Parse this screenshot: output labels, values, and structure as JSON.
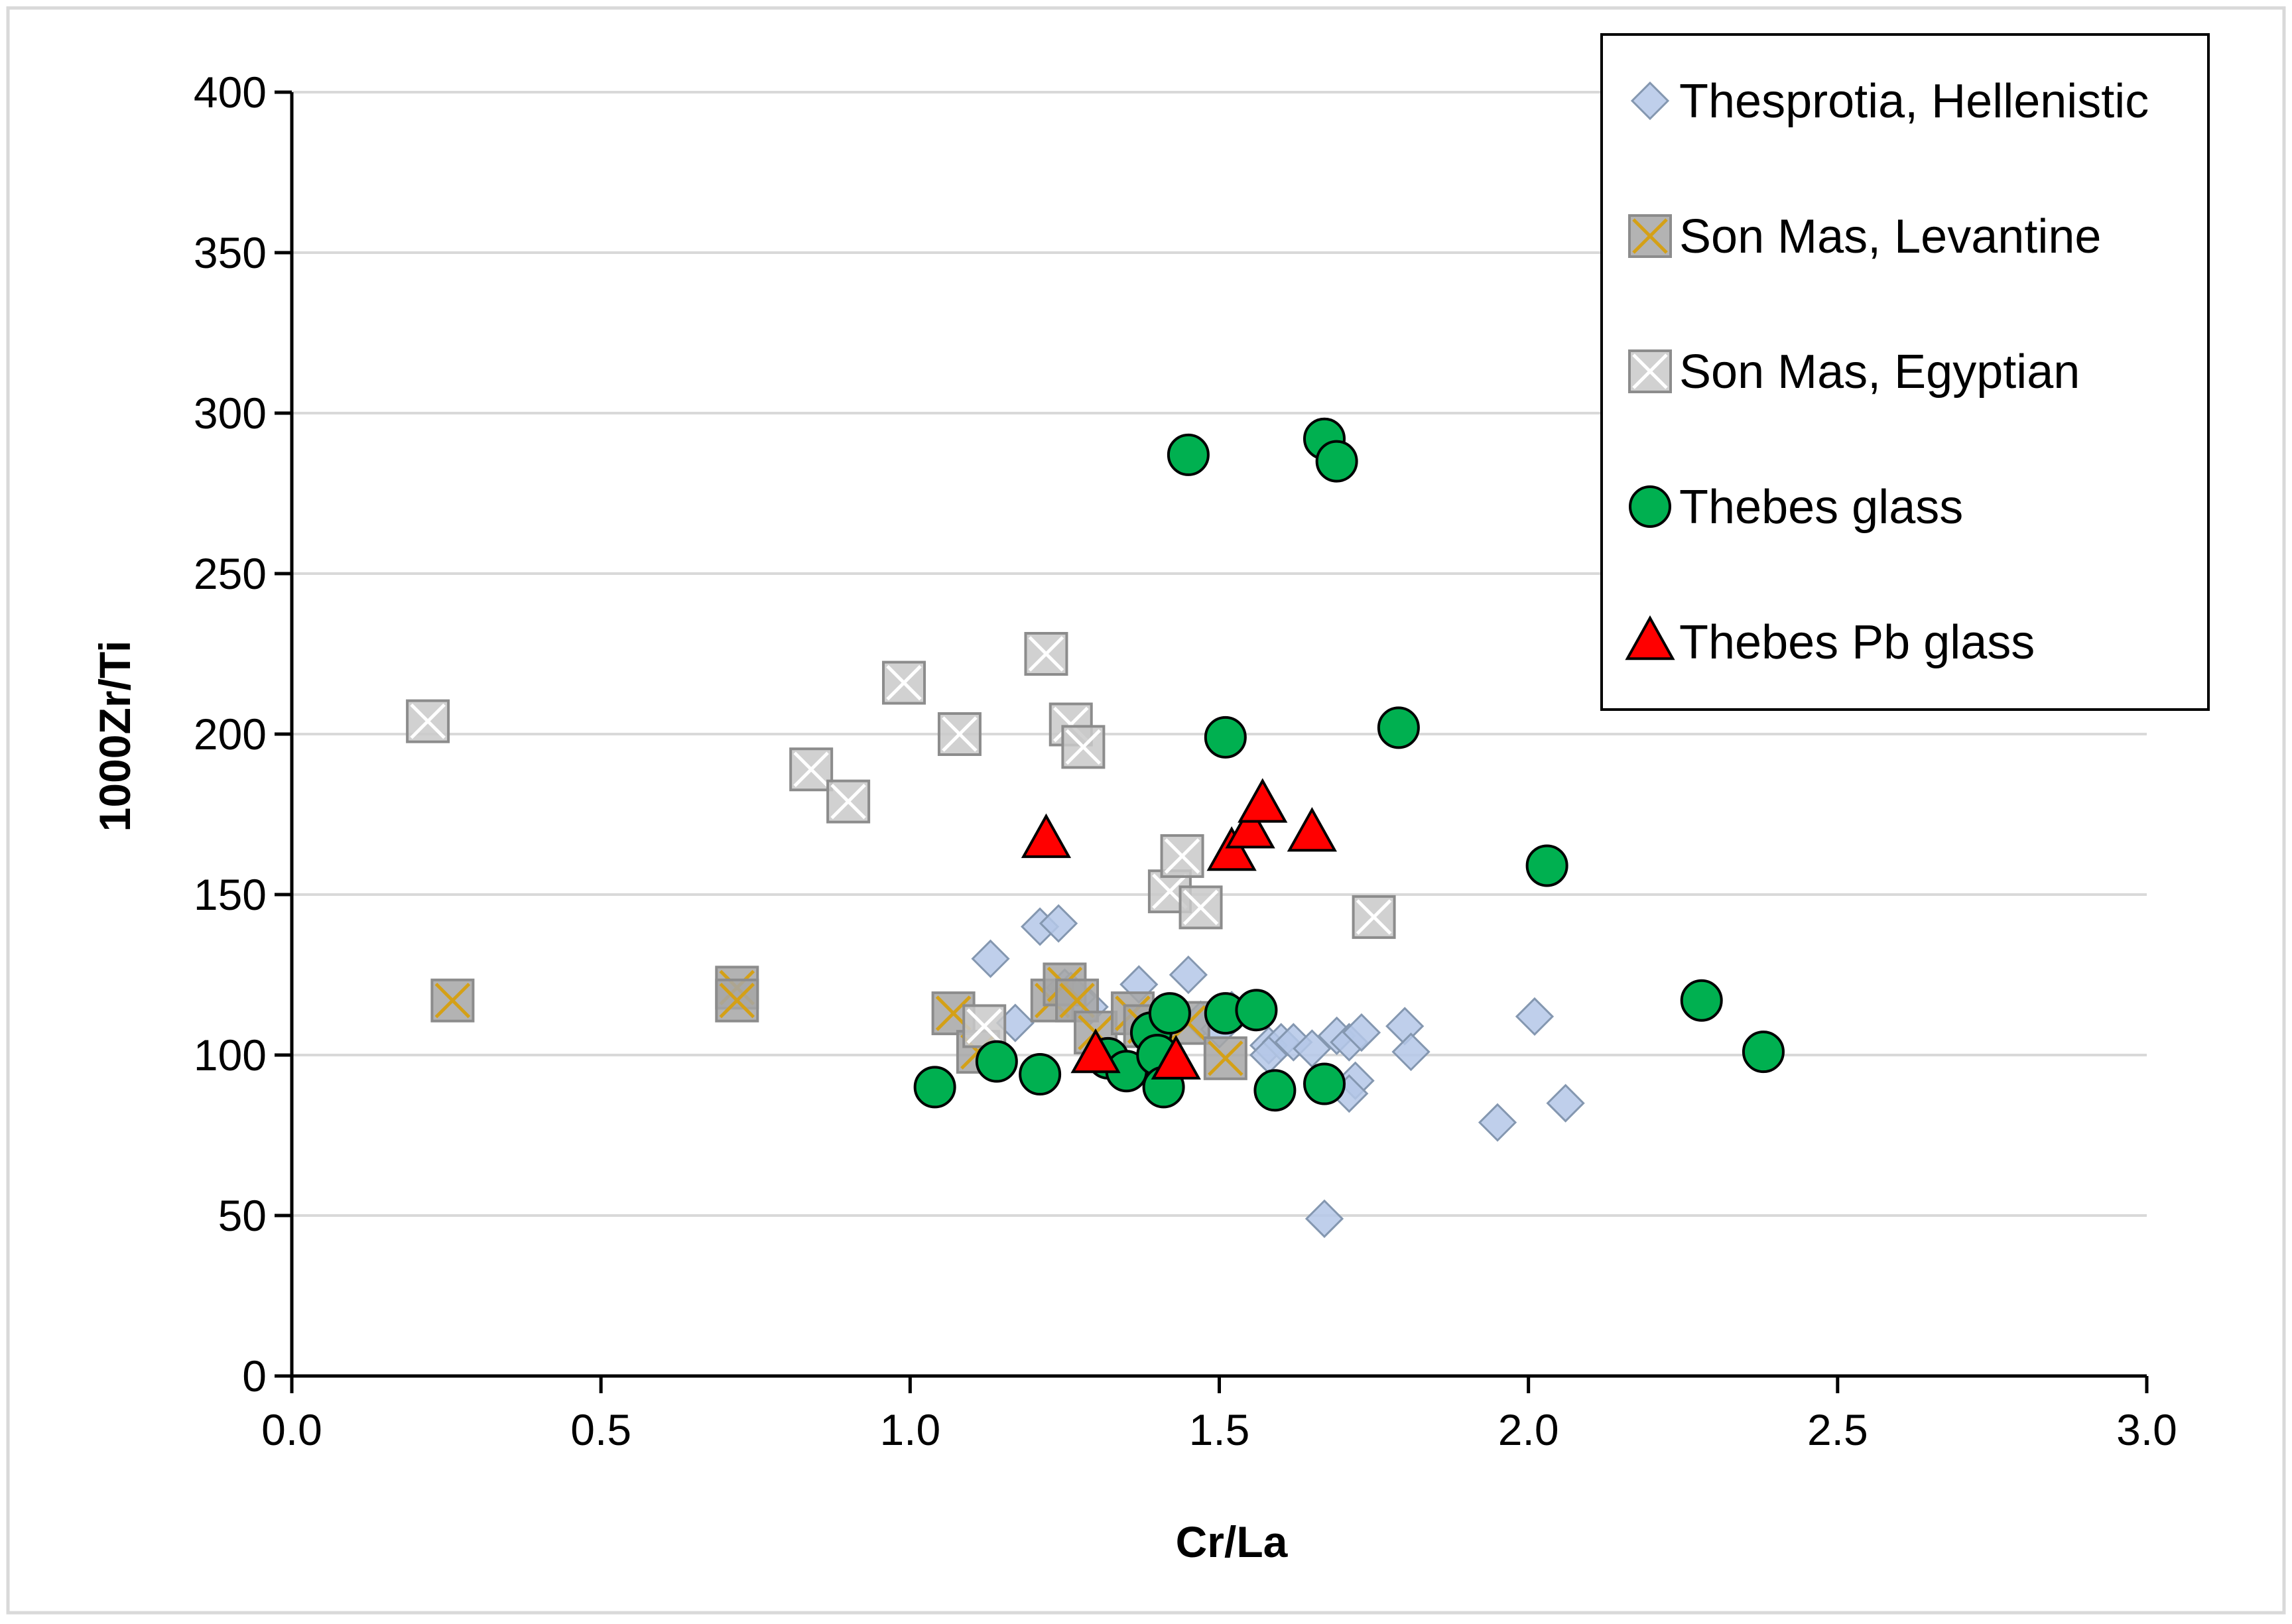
{
  "chart_data": {
    "type": "scatter",
    "title": "",
    "xlabel": "Cr/La",
    "ylabel": "1000Zr/Ti",
    "xlim": [
      0,
      3
    ],
    "ylim": [
      0,
      400
    ],
    "xticks": [
      "0.0",
      "0.5",
      "1.0",
      "1.5",
      "2.0",
      "2.5",
      "3.0"
    ],
    "yticks": [
      "0",
      "50",
      "100",
      "150",
      "200",
      "250",
      "300",
      "350",
      "400"
    ],
    "grid": "horizontal",
    "legend_position": "top-right",
    "series": [
      {
        "name": "Thesprotia, Hellenistic",
        "marker": "diamond",
        "color": "#b4c7e7",
        "stroke": "#8497b0",
        "points": [
          [
            1.13,
            130
          ],
          [
            1.21,
            140
          ],
          [
            1.24,
            141
          ],
          [
            1.17,
            110
          ],
          [
            1.25,
            121
          ],
          [
            1.26,
            120
          ],
          [
            1.29,
            115
          ],
          [
            1.37,
            122
          ],
          [
            1.45,
            125
          ],
          [
            1.47,
            111
          ],
          [
            1.5,
            108
          ],
          [
            1.58,
            103
          ],
          [
            1.6,
            104
          ],
          [
            1.62,
            104
          ],
          [
            1.58,
            100
          ],
          [
            1.65,
            102
          ],
          [
            1.69,
            106
          ],
          [
            1.71,
            104
          ],
          [
            1.73,
            107
          ],
          [
            1.72,
            92
          ],
          [
            1.71,
            88
          ],
          [
            1.8,
            109
          ],
          [
            1.81,
            101
          ],
          [
            1.95,
            79
          ],
          [
            2.01,
            112
          ],
          [
            2.06,
            85
          ],
          [
            1.67,
            49
          ],
          [
            1.52,
            114
          ],
          [
            1.27,
            118
          ]
        ]
      },
      {
        "name": "Son Mas, Levantine",
        "marker": "square-x",
        "color": "#a6a6a6",
        "stroke": "#bf9000",
        "points": [
          [
            0.26,
            117
          ],
          [
            0.72,
            121
          ],
          [
            0.72,
            117
          ],
          [
            1.07,
            113
          ],
          [
            1.11,
            101
          ],
          [
            1.23,
            117
          ],
          [
            1.25,
            122
          ],
          [
            1.27,
            117
          ],
          [
            1.3,
            107
          ],
          [
            1.36,
            113
          ],
          [
            1.38,
            109
          ],
          [
            1.45,
            110
          ],
          [
            1.51,
            99
          ]
        ]
      },
      {
        "name": "Son Mas, Egyptian",
        "marker": "square-x",
        "color": "#c9c9c9",
        "stroke": "#8c8c8c",
        "points": [
          [
            0.22,
            204
          ],
          [
            0.84,
            189
          ],
          [
            0.9,
            179
          ],
          [
            0.99,
            216
          ],
          [
            1.08,
            200
          ],
          [
            1.22,
            225
          ],
          [
            1.26,
            203
          ],
          [
            1.28,
            196
          ],
          [
            1.42,
            151
          ],
          [
            1.44,
            162
          ],
          [
            1.47,
            146
          ],
          [
            1.75,
            143
          ],
          [
            1.12,
            109
          ]
        ]
      },
      {
        "name": "Thebes glass",
        "marker": "circle",
        "color": "#00b050",
        "stroke": "#000000",
        "points": [
          [
            1.45,
            287
          ],
          [
            1.67,
            292
          ],
          [
            1.69,
            285
          ],
          [
            1.51,
            199
          ],
          [
            1.79,
            202
          ],
          [
            2.03,
            159
          ],
          [
            2.28,
            117
          ],
          [
            2.38,
            101
          ],
          [
            1.04,
            90
          ],
          [
            1.14,
            98
          ],
          [
            1.21,
            94
          ],
          [
            1.32,
            99
          ],
          [
            1.35,
            95
          ],
          [
            1.39,
            107
          ],
          [
            1.4,
            100
          ],
          [
            1.41,
            90
          ],
          [
            1.42,
            113
          ],
          [
            1.51,
            113
          ],
          [
            1.56,
            114
          ],
          [
            1.59,
            89
          ],
          [
            1.67,
            91
          ]
        ]
      },
      {
        "name": "Thebes Pb glass",
        "marker": "triangle",
        "color": "#ff0000",
        "stroke": "#000000",
        "points": [
          [
            1.22,
            167
          ],
          [
            1.3,
            100
          ],
          [
            1.43,
            98
          ],
          [
            1.52,
            163
          ],
          [
            1.55,
            170
          ],
          [
            1.57,
            178
          ],
          [
            1.65,
            169
          ]
        ]
      }
    ]
  }
}
